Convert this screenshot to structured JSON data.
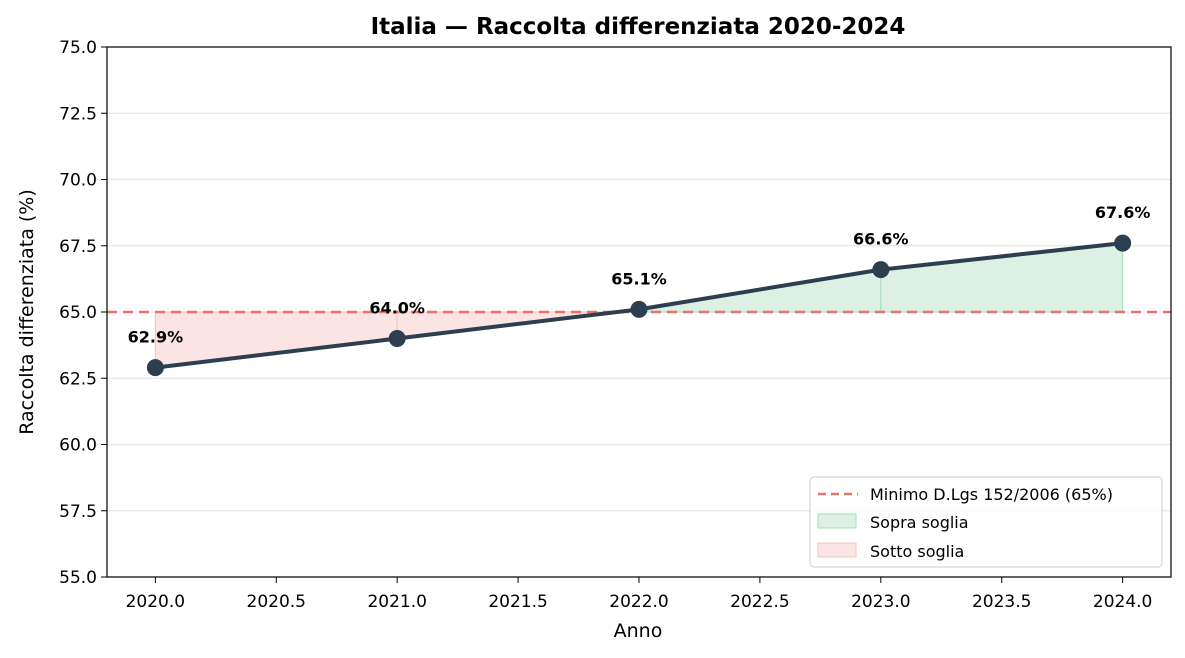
{
  "chart_data": {
    "type": "line",
    "title": "Italia — Raccolta differenziata 2020-2024",
    "xlabel": "Anno",
    "ylabel": "Raccolta differenziata (%)",
    "x": [
      2020,
      2021,
      2022,
      2023,
      2024
    ],
    "series": [
      {
        "values": [
          62.9,
          64.0,
          65.1,
          66.6,
          67.6
        ],
        "color": "#2c3e50"
      }
    ],
    "data_labels": [
      "62.9%",
      "64.0%",
      "65.1%",
      "66.6%",
      "67.6%"
    ],
    "threshold": {
      "value": 65,
      "label": "Minimo D.Lgs 152/2006 (65%)",
      "color": "#e8736a"
    },
    "fill_above": {
      "label": "Sopra soglia",
      "color": "#dcf0e4",
      "edge": "#a9dcbc"
    },
    "fill_below": {
      "label": "Sotto soglia",
      "color": "#fbe5e4",
      "edge": "#f4c2bf"
    },
    "xlim": [
      2019.8,
      2024.2
    ],
    "ylim": [
      55.0,
      75.0
    ],
    "xticks": [
      "2020.0",
      "2020.5",
      "2021.0",
      "2021.5",
      "2022.0",
      "2022.5",
      "2023.0",
      "2023.5",
      "2024.0"
    ],
    "yticks": [
      "55.0",
      "57.5",
      "60.0",
      "62.5",
      "65.0",
      "67.5",
      "70.0",
      "72.5",
      "75.0"
    ],
    "grid": "y",
    "legend_position": "bottom-right"
  }
}
